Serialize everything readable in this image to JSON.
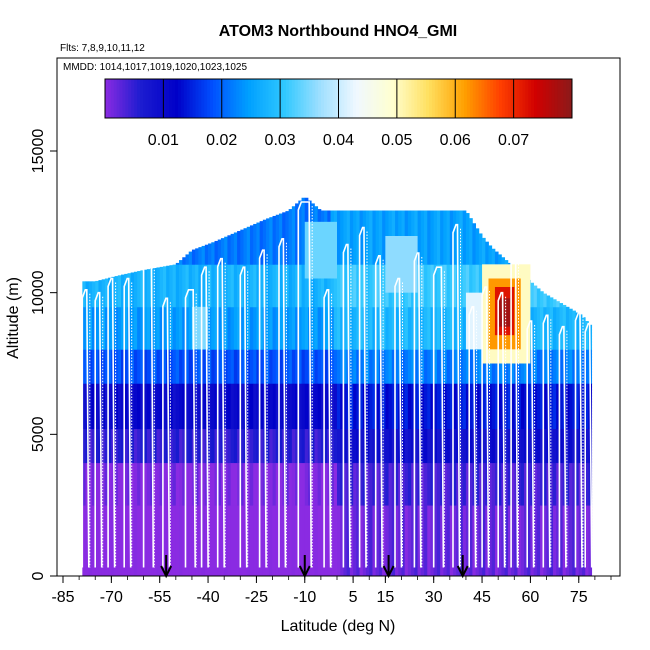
{
  "chart_data": {
    "type": "heatmap",
    "title": "ATOM3 Northbound HNO4_GMI",
    "subtitle_flights": "Flts: 7,8,9,10,11,12",
    "subtitle_dates": "MMDD: 1014,1017,1019,1020,1023,1025",
    "xlabel": "Latitude (deg N)",
    "ylabel": "Altitude (m)",
    "xlim": [
      -85,
      85
    ],
    "ylim": [
      0,
      18000
    ],
    "xticks": [
      -85,
      -70,
      -55,
      -40,
      -25,
      -10,
      5,
      15,
      30,
      45,
      60,
      75
    ],
    "xtick_labels": [
      "-85",
      "-70",
      "-55",
      "-40",
      "-25",
      "-10",
      "5",
      "15",
      "30",
      "45",
      "60",
      "75"
    ],
    "yticks": [
      0,
      5000,
      10000,
      15000
    ],
    "ytick_labels": [
      "0",
      "5000",
      "10000",
      "15000"
    ],
    "colorbar": {
      "range": [
        0,
        0.08
      ],
      "ticks": [
        0.01,
        0.02,
        0.03,
        0.04,
        0.05,
        0.06,
        0.07
      ],
      "tick_labels": [
        "0.01",
        "0.02",
        "0.03",
        "0.04",
        "0.05",
        "0.06",
        "0.07"
      ],
      "colors": [
        "#8a2be2",
        "#1c1cd0",
        "#0000c8",
        "#0050ff",
        "#00a0ff",
        "#30c8ff",
        "#a0e0ff",
        "#f0f8ff",
        "#ffffd0",
        "#ffe060",
        "#ffa000",
        "#ff4000",
        "#d00000",
        "#8b1a1a"
      ]
    },
    "top_altitude_envelope": {
      "lat": [
        -79,
        -75,
        -68,
        -60,
        -50,
        -45,
        -38,
        -30,
        -22,
        -15,
        -10,
        -5,
        0,
        10,
        20,
        30,
        40,
        45,
        48,
        52,
        56,
        60,
        64,
        70,
        76,
        79
      ],
      "alt": [
        10400,
        10400,
        10600,
        10800,
        11000,
        11500,
        11800,
        12200,
        12600,
        12900,
        13400,
        12900,
        12900,
        12900,
        12900,
        12900,
        12900,
        12000,
        11600,
        11200,
        10800,
        10400,
        10000,
        9600,
        9200,
        8800
      ]
    },
    "field_bands": [
      {
        "alt_from": 0,
        "alt_to": 2500,
        "value": 0.002
      },
      {
        "alt_from": 2500,
        "alt_to": 4000,
        "value": 0.004
      },
      {
        "alt_from": 4000,
        "alt_to": 5200,
        "value": 0.009
      },
      {
        "alt_from": 5200,
        "alt_to": 6800,
        "value": 0.014
      },
      {
        "alt_from": 6800,
        "alt_to": 8000,
        "value": 0.022
      },
      {
        "alt_from": 8000,
        "alt_to": 9500,
        "value": 0.028
      },
      {
        "alt_from": 9500,
        "alt_to": 11000,
        "value": 0.031
      },
      {
        "alt_from": 11000,
        "alt_to": 13500,
        "value": 0.025
      }
    ],
    "hot_spots": [
      {
        "lat_from": 45,
        "lat_to": 60,
        "alt_from": 7500,
        "alt_to": 11000,
        "value": 0.05
      },
      {
        "lat_from": 47,
        "lat_to": 57,
        "alt_from": 8000,
        "alt_to": 10500,
        "value": 0.062
      },
      {
        "lat_from": 49,
        "lat_to": 55,
        "alt_from": 8500,
        "alt_to": 10200,
        "value": 0.072
      },
      {
        "lat_from": 50,
        "lat_to": 54,
        "alt_from": 8800,
        "alt_to": 9800,
        "value": 0.078
      },
      {
        "lat_from": 40,
        "lat_to": 45,
        "alt_from": 8000,
        "alt_to": 10000,
        "value": 0.042
      },
      {
        "lat_from": -45,
        "lat_to": -40,
        "alt_from": 8000,
        "alt_to": 9500,
        "value": 0.035
      },
      {
        "lat_from": -10,
        "lat_to": 0,
        "alt_from": 10500,
        "alt_to": 12500,
        "value": 0.034
      },
      {
        "lat_from": 15,
        "lat_to": 25,
        "alt_from": 10000,
        "alt_to": 12000,
        "value": 0.036
      }
    ],
    "flight_profiles": [
      {
        "lat_from": -79,
        "lat_to": -77,
        "top": 10100
      },
      {
        "lat_from": -75,
        "lat_to": -73,
        "top": 10000
      },
      {
        "lat_from": -71,
        "lat_to": -69,
        "top": 10500
      },
      {
        "lat_from": -66,
        "lat_to": -64,
        "top": 10500
      },
      {
        "lat_from": -60,
        "lat_to": -57,
        "top": 11900
      },
      {
        "lat_from": -54,
        "lat_to": -52,
        "top": 9800
      },
      {
        "lat_from": -47,
        "lat_to": -44,
        "top": 10100
      },
      {
        "lat_from": -42,
        "lat_to": -40,
        "top": 10900
      },
      {
        "lat_from": -37,
        "lat_to": -35,
        "top": 11200
      },
      {
        "lat_from": -30,
        "lat_to": -28,
        "top": 10900
      },
      {
        "lat_from": -24,
        "lat_to": -22,
        "top": 11500
      },
      {
        "lat_from": -18,
        "lat_to": -16,
        "top": 11900
      },
      {
        "lat_from": -12,
        "lat_to": -8,
        "top": 13200
      },
      {
        "lat_from": -4,
        "lat_to": -2,
        "top": 10100
      },
      {
        "lat_from": 2,
        "lat_to": 4,
        "top": 11700
      },
      {
        "lat_from": 7,
        "lat_to": 9,
        "top": 12300
      },
      {
        "lat_from": 12,
        "lat_to": 14,
        "top": 11300
      },
      {
        "lat_from": 18,
        "lat_to": 20,
        "top": 10500
      },
      {
        "lat_from": 24,
        "lat_to": 26,
        "top": 11400
      },
      {
        "lat_from": 30,
        "lat_to": 33,
        "top": 10900
      },
      {
        "lat_from": 36,
        "lat_to": 38,
        "top": 12400
      },
      {
        "lat_from": 41,
        "lat_to": 43,
        "top": 9500
      },
      {
        "lat_from": 45,
        "lat_to": 47,
        "top": 10200
      },
      {
        "lat_from": 50,
        "lat_to": 52,
        "top": 10000
      },
      {
        "lat_from": 54,
        "lat_to": 56,
        "top": 12000
      },
      {
        "lat_from": 59,
        "lat_to": 61,
        "top": 9000
      },
      {
        "lat_from": 64,
        "lat_to": 66,
        "top": 9200
      },
      {
        "lat_from": 69,
        "lat_to": 71,
        "top": 8800
      },
      {
        "lat_from": 74,
        "lat_to": 76,
        "top": 9300
      },
      {
        "lat_from": 77,
        "lat_to": 79,
        "top": 8900
      }
    ],
    "arrow_markers_lat": [
      -53,
      -10,
      16,
      39
    ]
  }
}
